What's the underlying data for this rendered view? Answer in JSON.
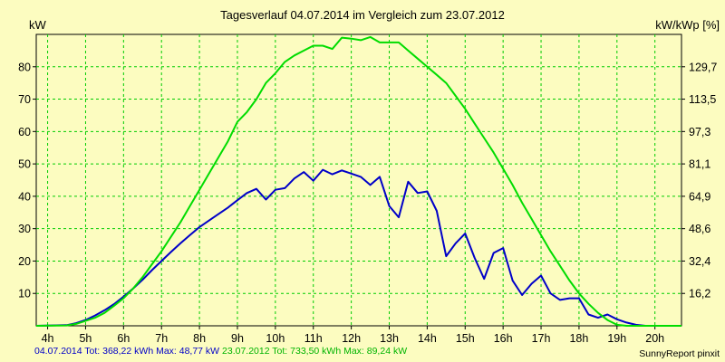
{
  "chart_data": {
    "type": "line",
    "title": "Tagesverlauf 04.07.2014 im Vergleich zum 23.07.2012",
    "ylabel": "kW",
    "ylabel_right": "kW/kWp [%]",
    "xlim": [
      3.7,
      20.7
    ],
    "ylim": [
      0,
      90
    ],
    "x_ticks": [
      4,
      5,
      6,
      7,
      8,
      9,
      10,
      11,
      12,
      13,
      14,
      15,
      16,
      17,
      18,
      19,
      20
    ],
    "x_tick_labels": [
      "4h",
      "5h",
      "6h",
      "7h",
      "8h",
      "9h",
      "10h",
      "11h",
      "12h",
      "13h",
      "14h",
      "15h",
      "16h",
      "17h",
      "18h",
      "19h",
      "20h"
    ],
    "y_ticks": [
      10,
      20,
      30,
      40,
      50,
      60,
      70,
      80
    ],
    "y_tick_labels": [
      "10",
      "20",
      "30",
      "40",
      "50",
      "60",
      "70",
      "80"
    ],
    "y_right_ticks": [
      10,
      20,
      30,
      40,
      50,
      60,
      70,
      80
    ],
    "y_right_tick_labels": [
      "16,2",
      "32,4",
      "48,6",
      "64,9",
      "81,1",
      "97,3",
      "113,5",
      "129,7"
    ],
    "grid": true,
    "series": [
      {
        "name": "04.07.2014",
        "color": "#0000c8",
        "x": [
          3.7,
          4.5,
          4.75,
          5.0,
          5.25,
          5.5,
          5.75,
          6.0,
          6.25,
          6.5,
          6.75,
          7.0,
          7.25,
          7.5,
          7.75,
          8.0,
          8.25,
          8.5,
          8.75,
          9.0,
          9.25,
          9.5,
          9.75,
          10.0,
          10.25,
          10.5,
          10.75,
          11.0,
          11.25,
          11.5,
          11.75,
          12.0,
          12.25,
          12.5,
          12.75,
          13.0,
          13.25,
          13.5,
          13.75,
          14.0,
          14.25,
          14.5,
          14.75,
          15.0,
          15.25,
          15.5,
          15.75,
          16.0,
          16.25,
          16.5,
          16.75,
          17.0,
          17.25,
          17.5,
          17.75,
          18.0,
          18.25,
          18.5,
          18.75,
          19.0,
          19.25,
          19.5,
          19.75,
          20.7
        ],
        "y": [
          0,
          0.2,
          0.8,
          1.8,
          3.2,
          4.8,
          6.7,
          9.0,
          11.5,
          14.2,
          17.2,
          20.0,
          22.8,
          25.5,
          28.0,
          30.5,
          32.5,
          34.5,
          36.5,
          38.8,
          41.0,
          42.3,
          39.0,
          42.0,
          42.5,
          45.5,
          47.5,
          44.8,
          48.2,
          46.8,
          48.0,
          47.0,
          46.0,
          43.5,
          46.0,
          37.0,
          33.5,
          44.5,
          41.0,
          41.5,
          35.5,
          21.5,
          25.5,
          28.5,
          21.0,
          14.5,
          22.5,
          24.0,
          14.0,
          9.5,
          13.0,
          15.5,
          10.0,
          8.0,
          8.5,
          8.5,
          3.5,
          2.5,
          3.5,
          2.0,
          1.0,
          0.3,
          0,
          0
        ]
      },
      {
        "name": "23.07.2012",
        "color": "#00dc00",
        "x": [
          3.7,
          4.5,
          4.75,
          5.0,
          5.25,
          5.5,
          5.75,
          6.0,
          6.25,
          6.5,
          6.75,
          7.0,
          7.25,
          7.5,
          7.75,
          8.0,
          8.25,
          8.5,
          8.75,
          9.0,
          9.25,
          9.5,
          9.75,
          10.0,
          10.25,
          10.5,
          10.75,
          11.0,
          11.25,
          11.5,
          11.75,
          12.0,
          12.25,
          12.5,
          12.75,
          13.0,
          13.25,
          13.5,
          13.75,
          14.0,
          14.25,
          14.5,
          14.75,
          15.0,
          15.25,
          15.5,
          15.75,
          16.0,
          16.25,
          16.5,
          16.75,
          17.0,
          17.25,
          17.5,
          17.75,
          18.0,
          18.25,
          18.5,
          18.75,
          19.0,
          19.25,
          19.5,
          19.75,
          20.7
        ],
        "y": [
          0,
          0.1,
          0.6,
          1.5,
          2.5,
          4.0,
          6.2,
          8.5,
          11.5,
          15.0,
          19.0,
          23.0,
          27.5,
          32.0,
          37.0,
          42.0,
          47.0,
          52.0,
          57.0,
          63.0,
          66.0,
          70.0,
          75.0,
          78.0,
          81.5,
          83.5,
          85.0,
          86.5,
          86.5,
          85.5,
          89.0,
          88.7,
          88.2,
          89.2,
          87.5,
          87.5,
          87.5,
          85.0,
          82.5,
          80.0,
          77.5,
          75.0,
          71.0,
          67.0,
          62.5,
          58.0,
          53.5,
          48.5,
          43.5,
          38.0,
          33.0,
          28.0,
          23.0,
          18.5,
          14.0,
          10.0,
          6.8,
          4.0,
          1.8,
          0.3,
          0,
          0,
          0,
          0
        ]
      }
    ]
  },
  "footer": {
    "series1_label": "04.07.2014 Tot: 368,22 kWh Max: 48,77 kW",
    "series2_label": "23.07.2012 Tot: 733,50 kWh Max: 89,24 kW",
    "series1_color": "#0000c8",
    "series2_color": "#00b400",
    "credit": "SunnyReport pinxit"
  }
}
